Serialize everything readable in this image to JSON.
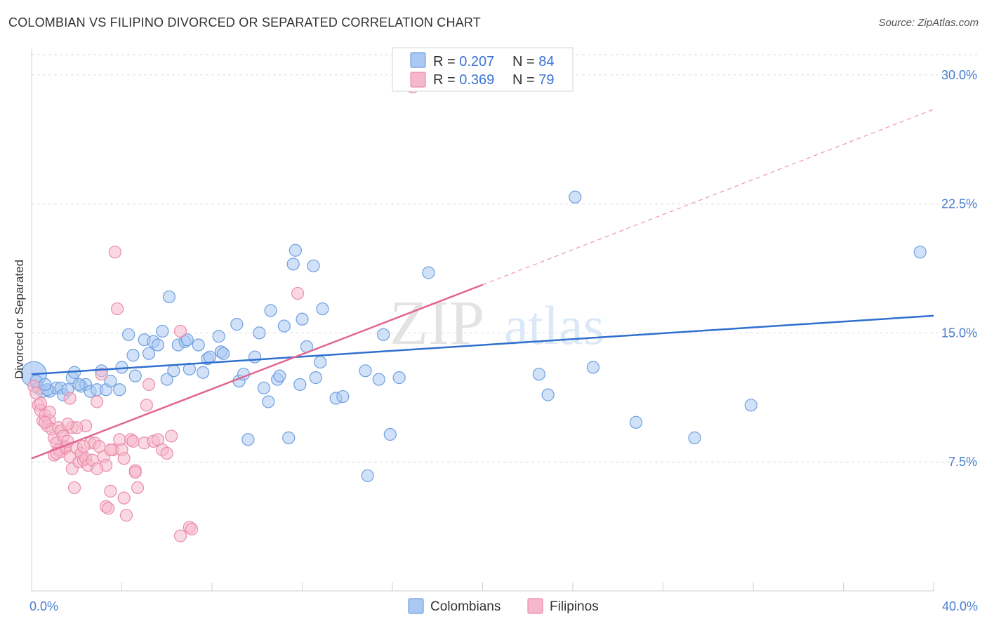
{
  "title": "COLOMBIAN VS FILIPINO DIVORCED OR SEPARATED CORRELATION CHART",
  "source": "Source: ZipAtlas.com",
  "watermark": {
    "zip": "ZIP",
    "atlas": "atlas"
  },
  "colors": {
    "colombians_fill": "#a9c8f2",
    "colombians_stroke": "#6f9fe0",
    "colombians_line": "#2f6fce",
    "filipinos_fill": "#f5b8cb",
    "filipinos_stroke": "#ea8cab",
    "filipinos_line": "#e26690",
    "grid": "#dcdcdc",
    "tick_label": "#4a7fd0"
  },
  "legend": {
    "rows": [
      {
        "r_label": "R = ",
        "r_value": "0.207",
        "n_label": "N = ",
        "n_value": "84"
      },
      {
        "r_label": "R = ",
        "r_value": "0.369",
        "n_label": "N = ",
        "n_value": "79"
      }
    ]
  },
  "chart_data": {
    "type": "scatter",
    "title": "COLOMBIAN VS FILIPINO DIVORCED OR SEPARATED CORRELATION CHART",
    "xlabel": "",
    "ylabel": "Divorced or Separated",
    "xlim": [
      0,
      40
    ],
    "ylim": [
      0,
      31.5
    ],
    "x_tick_labels": [
      {
        "value": 0,
        "label": "0.0%"
      },
      {
        "value": 40,
        "label": "40.0%"
      }
    ],
    "y_tick_labels": [
      {
        "value": 7.5,
        "label": "7.5%"
      },
      {
        "value": 15,
        "label": "15.0%"
      },
      {
        "value": 22.5,
        "label": "22.5%"
      },
      {
        "value": 30,
        "label": "30.0%"
      }
    ],
    "grid": "horizontal dashed",
    "legend_position": "top-center",
    "series": [
      {
        "name": "Colombians",
        "trend": {
          "x": [
            0,
            40
          ],
          "y": [
            12.6,
            16.0
          ],
          "style": "solid"
        },
        "points": [
          [
            0.1,
            12.6
          ],
          [
            0.3,
            11.8
          ],
          [
            0.5,
            11.6
          ],
          [
            0.8,
            11.6
          ],
          [
            1.1,
            11.8
          ],
          [
            1.3,
            11.8
          ],
          [
            0.7,
            11.7
          ],
          [
            1.4,
            11.4
          ],
          [
            1.8,
            12.4
          ],
          [
            1.9,
            12.7
          ],
          [
            2.2,
            11.9
          ],
          [
            2.4,
            12.0
          ],
          [
            2.6,
            11.6
          ],
          [
            2.9,
            11.7
          ],
          [
            3.1,
            12.8
          ],
          [
            3.3,
            11.7
          ],
          [
            3.5,
            12.2
          ],
          [
            3.9,
            11.7
          ],
          [
            4.0,
            13.0
          ],
          [
            4.3,
            14.9
          ],
          [
            4.5,
            13.7
          ],
          [
            4.6,
            12.5
          ],
          [
            5.0,
            14.6
          ],
          [
            5.2,
            13.8
          ],
          [
            5.4,
            14.5
          ],
          [
            5.6,
            14.3
          ],
          [
            5.8,
            15.1
          ],
          [
            6.0,
            12.3
          ],
          [
            6.1,
            17.1
          ],
          [
            6.3,
            12.8
          ],
          [
            6.5,
            14.3
          ],
          [
            6.8,
            14.5
          ],
          [
            6.9,
            14.6
          ],
          [
            7.0,
            12.9
          ],
          [
            7.4,
            14.3
          ],
          [
            7.6,
            12.7
          ],
          [
            7.8,
            13.5
          ],
          [
            7.9,
            13.6
          ],
          [
            8.3,
            14.8
          ],
          [
            8.4,
            13.9
          ],
          [
            8.5,
            13.8
          ],
          [
            9.1,
            15.5
          ],
          [
            9.2,
            12.2
          ],
          [
            9.4,
            12.6
          ],
          [
            9.6,
            8.8
          ],
          [
            9.9,
            13.6
          ],
          [
            10.1,
            15.0
          ],
          [
            10.3,
            11.8
          ],
          [
            10.5,
            11.0
          ],
          [
            10.6,
            16.3
          ],
          [
            10.9,
            12.3
          ],
          [
            11.0,
            12.5
          ],
          [
            11.2,
            15.4
          ],
          [
            11.4,
            8.9
          ],
          [
            11.6,
            19.0
          ],
          [
            11.7,
            19.8
          ],
          [
            11.9,
            12.0
          ],
          [
            12.0,
            15.8
          ],
          [
            12.2,
            14.2
          ],
          [
            12.5,
            18.9
          ],
          [
            12.6,
            12.4
          ],
          [
            12.8,
            13.3
          ],
          [
            12.9,
            16.4
          ],
          [
            13.5,
            11.2
          ],
          [
            13.8,
            11.3
          ],
          [
            14.8,
            12.8
          ],
          [
            15.4,
            12.3
          ],
          [
            15.6,
            14.9
          ],
          [
            15.9,
            9.1
          ],
          [
            16.3,
            12.4
          ],
          [
            17.6,
            18.5
          ],
          [
            14.9,
            6.7
          ],
          [
            22.5,
            12.6
          ],
          [
            22.9,
            11.4
          ],
          [
            24.1,
            22.9
          ],
          [
            24.9,
            13.0
          ],
          [
            26.8,
            9.8
          ],
          [
            29.4,
            8.9
          ],
          [
            31.9,
            10.8
          ],
          [
            39.4,
            19.7
          ],
          [
            0.2,
            12.2
          ],
          [
            0.6,
            12.0
          ],
          [
            1.6,
            11.7
          ],
          [
            2.1,
            12.0
          ]
        ]
      },
      {
        "name": "Filipinos",
        "trend": {
          "x": [
            0,
            20
          ],
          "y": [
            7.7,
            17.8
          ],
          "style": "solid",
          "extended_to": [
            40,
            28.0
          ],
          "extended_style": "dashed"
        },
        "points": [
          [
            0.1,
            11.9
          ],
          [
            0.2,
            11.5
          ],
          [
            0.3,
            10.8
          ],
          [
            0.4,
            10.5
          ],
          [
            0.5,
            9.9
          ],
          [
            0.6,
            10.2
          ],
          [
            0.7,
            9.6
          ],
          [
            0.8,
            9.9
          ],
          [
            0.9,
            9.4
          ],
          [
            1.0,
            8.9
          ],
          [
            1.0,
            7.9
          ],
          [
            1.1,
            8.6
          ],
          [
            1.2,
            9.5
          ],
          [
            1.3,
            9.3
          ],
          [
            1.3,
            8.1
          ],
          [
            1.4,
            9.0
          ],
          [
            1.5,
            8.4
          ],
          [
            1.5,
            8.3
          ],
          [
            1.6,
            8.7
          ],
          [
            1.7,
            7.8
          ],
          [
            1.8,
            7.1
          ],
          [
            1.8,
            9.5
          ],
          [
            1.9,
            6.0
          ],
          [
            2.0,
            8.3
          ],
          [
            2.1,
            7.5
          ],
          [
            2.2,
            8.0
          ],
          [
            2.3,
            7.6
          ],
          [
            2.4,
            9.6
          ],
          [
            2.4,
            7.7
          ],
          [
            2.5,
            7.3
          ],
          [
            2.6,
            8.6
          ],
          [
            2.7,
            7.6
          ],
          [
            2.8,
            8.6
          ],
          [
            2.9,
            11.0
          ],
          [
            3.0,
            8.4
          ],
          [
            3.1,
            12.6
          ],
          [
            3.2,
            7.8
          ],
          [
            3.3,
            7.3
          ],
          [
            3.3,
            4.9
          ],
          [
            3.4,
            4.8
          ],
          [
            3.5,
            5.8
          ],
          [
            3.6,
            8.2
          ],
          [
            3.7,
            19.7
          ],
          [
            3.8,
            16.4
          ],
          [
            3.9,
            8.8
          ],
          [
            4.0,
            8.2
          ],
          [
            4.1,
            5.4
          ],
          [
            4.2,
            4.4
          ],
          [
            4.4,
            8.8
          ],
          [
            4.5,
            8.7
          ],
          [
            4.6,
            7.0
          ],
          [
            4.6,
            6.9
          ],
          [
            4.7,
            6.0
          ],
          [
            5.0,
            8.6
          ],
          [
            5.1,
            10.8
          ],
          [
            5.2,
            12.0
          ],
          [
            5.4,
            8.7
          ],
          [
            5.6,
            8.8
          ],
          [
            5.8,
            8.2
          ],
          [
            6.0,
            8.0
          ],
          [
            6.2,
            9.0
          ],
          [
            6.6,
            15.1
          ],
          [
            6.6,
            3.2
          ],
          [
            7.0,
            3.7
          ],
          [
            7.1,
            3.6
          ],
          [
            11.8,
            17.3
          ],
          [
            16.9,
            29.3
          ],
          [
            1.2,
            8.2
          ],
          [
            2.0,
            9.5
          ],
          [
            0.8,
            10.4
          ],
          [
            1.6,
            9.7
          ],
          [
            2.9,
            7.1
          ],
          [
            0.4,
            10.9
          ],
          [
            1.1,
            8.0
          ],
          [
            2.3,
            8.4
          ],
          [
            3.5,
            8.2
          ],
          [
            4.1,
            7.7
          ],
          [
            1.7,
            11.2
          ],
          [
            0.6,
            9.8
          ]
        ]
      }
    ]
  },
  "bottom_legend": {
    "items": [
      "Colombians",
      "Filipinos"
    ]
  }
}
